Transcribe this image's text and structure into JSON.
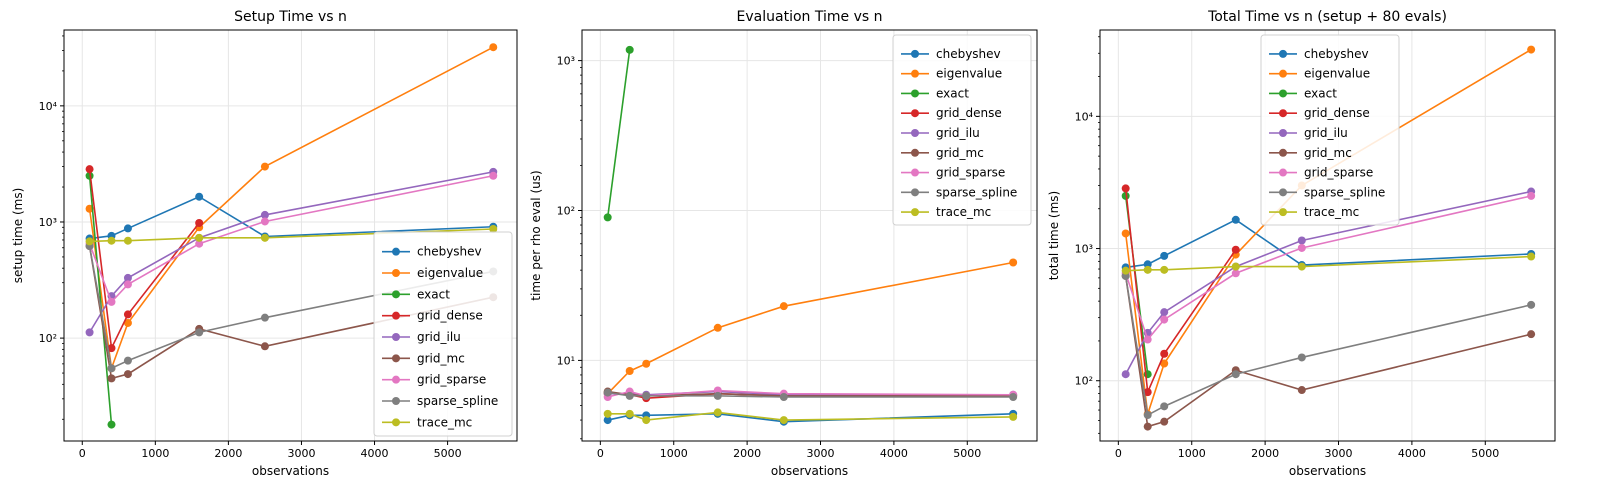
{
  "chart_data": [
    {
      "type": "line",
      "title": "Setup Time vs n",
      "xlabel": "observations",
      "ylabel": "setup time (ms)",
      "yscale": "log",
      "xlim": [
        -250,
        5950
      ],
      "ylim": [
        13,
        45000
      ],
      "xticks": [
        0,
        1000,
        2000,
        3000,
        4000,
        5000
      ],
      "xtick_labels": [
        "0",
        "1000",
        "2000",
        "3000",
        "4000",
        "5000"
      ],
      "yticks": [
        100,
        1000,
        10000
      ],
      "ytick_labels": [
        "10²",
        "10³",
        "10⁴"
      ],
      "grid": true,
      "legend_position": "lower-right",
      "series": [
        {
          "name": "chebyshev",
          "color": "#1f77b4",
          "x": [
            100,
            400,
            625,
            1600,
            2500,
            5625
          ],
          "y": [
            720,
            760,
            880,
            1650,
            750,
            910
          ]
        },
        {
          "name": "eigenvalue",
          "color": "#ff7f0e",
          "x": [
            100,
            400,
            625,
            1600,
            2500,
            5625
          ],
          "y": [
            1300,
            55,
            135,
            900,
            3000,
            32000
          ]
        },
        {
          "name": "exact",
          "color": "#2ca02c",
          "x": [
            100,
            400
          ],
          "y": [
            2500,
            18
          ]
        },
        {
          "name": "grid_dense",
          "color": "#d62728",
          "x": [
            100,
            400,
            625,
            1600
          ],
          "y": [
            2850,
            82,
            160,
            980
          ]
        },
        {
          "name": "grid_ilu",
          "color": "#9467bd",
          "x": [
            100,
            400,
            625,
            1600,
            2500,
            5625
          ],
          "y": [
            112,
            230,
            330,
            730,
            1150,
            2700
          ]
        },
        {
          "name": "grid_mc",
          "color": "#8c564b",
          "x": [
            100,
            400,
            625,
            1600,
            2500,
            5625
          ],
          "y": [
            620,
            45,
            49,
            120,
            85,
            225
          ]
        },
        {
          "name": "grid_sparse",
          "color": "#e377c2",
          "x": [
            100,
            400,
            625,
            1600,
            2500,
            5625
          ],
          "y": [
            650,
            205,
            290,
            650,
            1010,
            2500
          ]
        },
        {
          "name": "sparse_spline",
          "color": "#7f7f7f",
          "x": [
            100,
            400,
            625,
            1600,
            2500,
            5625
          ],
          "y": [
            620,
            55,
            64,
            112,
            150,
            375
          ]
        },
        {
          "name": "trace_mc",
          "color": "#bcbd22",
          "x": [
            100,
            400,
            625,
            1600,
            2500,
            5625
          ],
          "y": [
            680,
            690,
            690,
            730,
            730,
            870
          ]
        }
      ]
    },
    {
      "type": "line",
      "title": "Evaluation Time vs n",
      "xlabel": "observations",
      "ylabel": "time per rho eval (us)",
      "yscale": "log",
      "xlim": [
        -250,
        5950
      ],
      "ylim": [
        2.9,
        1600
      ],
      "xticks": [
        0,
        1000,
        2000,
        3000,
        4000,
        5000
      ],
      "xtick_labels": [
        "0",
        "1000",
        "2000",
        "3000",
        "4000",
        "5000"
      ],
      "yticks": [
        10,
        100,
        1000
      ],
      "ytick_labels": [
        "10¹",
        "10²",
        "10³"
      ],
      "grid": true,
      "legend_position": "upper-right",
      "series": [
        {
          "name": "chebyshev",
          "color": "#1f77b4",
          "x": [
            100,
            400,
            625,
            1600,
            2500,
            5625
          ],
          "y": [
            4.0,
            4.3,
            4.3,
            4.4,
            3.9,
            4.4
          ]
        },
        {
          "name": "eigenvalue",
          "color": "#ff7f0e",
          "x": [
            100,
            400,
            625,
            1600,
            2500,
            5625
          ],
          "y": [
            6.0,
            8.5,
            9.5,
            16.5,
            23,
            45
          ]
        },
        {
          "name": "exact",
          "color": "#2ca02c",
          "x": [
            100,
            400
          ],
          "y": [
            90,
            1180
          ]
        },
        {
          "name": "grid_dense",
          "color": "#d62728",
          "x": [
            100,
            400,
            625,
            1600,
            2500,
            5625
          ],
          "y": [
            6.1,
            5.9,
            5.6,
            6.0,
            5.8,
            5.8
          ]
        },
        {
          "name": "grid_ilu",
          "color": "#9467bd",
          "x": [
            100,
            400,
            625,
            1600,
            2500,
            5625
          ],
          "y": [
            6.0,
            6.0,
            5.9,
            6.2,
            5.9,
            5.9
          ]
        },
        {
          "name": "grid_mc",
          "color": "#8c564b",
          "x": [
            100,
            400,
            625,
            1600,
            2500,
            5625
          ],
          "y": [
            6.2,
            5.9,
            5.8,
            6.0,
            5.8,
            5.8
          ]
        },
        {
          "name": "grid_sparse",
          "color": "#e377c2",
          "x": [
            100,
            400,
            625,
            1600,
            2500,
            5625
          ],
          "y": [
            5.7,
            6.2,
            5.8,
            6.3,
            6.0,
            5.9
          ]
        },
        {
          "name": "sparse_spline",
          "color": "#7f7f7f",
          "x": [
            100,
            400,
            625,
            1600,
            2500,
            5625
          ],
          "y": [
            6.1,
            5.8,
            5.8,
            5.8,
            5.7,
            5.7
          ]
        },
        {
          "name": "trace_mc",
          "color": "#bcbd22",
          "x": [
            100,
            400,
            625,
            1600,
            2500,
            5625
          ],
          "y": [
            4.4,
            4.4,
            4.0,
            4.5,
            4.0,
            4.2
          ]
        }
      ]
    },
    {
      "type": "line",
      "title": "Total Time vs n (setup + 80 evals)",
      "xlabel": "observations",
      "ylabel": "total time (ms)",
      "yscale": "log",
      "xlim": [
        -250,
        5950
      ],
      "ylim": [
        35,
        45000
      ],
      "xticks": [
        0,
        1000,
        2000,
        3000,
        4000,
        5000
      ],
      "xtick_labels": [
        "0",
        "1000",
        "2000",
        "3000",
        "4000",
        "5000"
      ],
      "yticks": [
        100,
        1000,
        10000
      ],
      "ytick_labels": [
        "10²",
        "10³",
        "10⁴"
      ],
      "grid": true,
      "legend_position": "upper-center",
      "series": [
        {
          "name": "chebyshev",
          "color": "#1f77b4",
          "x": [
            100,
            400,
            625,
            1600,
            2500,
            5625
          ],
          "y": [
            720,
            760,
            880,
            1650,
            750,
            910
          ]
        },
        {
          "name": "eigenvalue",
          "color": "#ff7f0e",
          "x": [
            100,
            400,
            625,
            1600,
            2500,
            5625
          ],
          "y": [
            1300,
            56,
            135,
            900,
            3000,
            32000
          ]
        },
        {
          "name": "exact",
          "color": "#2ca02c",
          "x": [
            100,
            400
          ],
          "y": [
            2500,
            112
          ]
        },
        {
          "name": "grid_dense",
          "color": "#d62728",
          "x": [
            100,
            400,
            625,
            1600
          ],
          "y": [
            2850,
            82,
            160,
            980
          ]
        },
        {
          "name": "grid_ilu",
          "color": "#9467bd",
          "x": [
            100,
            400,
            625,
            1600,
            2500,
            5625
          ],
          "y": [
            112,
            230,
            330,
            730,
            1150,
            2700
          ]
        },
        {
          "name": "grid_mc",
          "color": "#8c564b",
          "x": [
            100,
            400,
            625,
            1600,
            2500,
            5625
          ],
          "y": [
            620,
            45,
            49,
            120,
            85,
            225
          ]
        },
        {
          "name": "grid_sparse",
          "color": "#e377c2",
          "x": [
            100,
            400,
            625,
            1600,
            2500,
            5625
          ],
          "y": [
            650,
            205,
            290,
            650,
            1010,
            2500
          ]
        },
        {
          "name": "sparse_spline",
          "color": "#7f7f7f",
          "x": [
            100,
            400,
            625,
            1600,
            2500,
            5625
          ],
          "y": [
            620,
            55,
            64,
            112,
            150,
            375
          ]
        },
        {
          "name": "trace_mc",
          "color": "#bcbd22",
          "x": [
            100,
            400,
            625,
            1600,
            2500,
            5625
          ],
          "y": [
            680,
            690,
            690,
            730,
            730,
            870
          ]
        }
      ]
    }
  ]
}
